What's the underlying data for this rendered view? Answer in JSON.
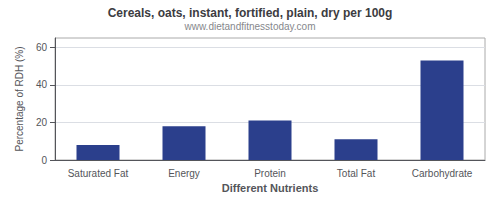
{
  "chart_data": {
    "type": "bar",
    "title": "Cereals, oats, instant, fortified, plain, dry per 100g",
    "subtitle": "www.dietandfitnesstoday.com",
    "categories": [
      "Saturated Fat",
      "Energy",
      "Protein",
      "Total Fat",
      "Carbohydrate"
    ],
    "values": [
      8,
      18,
      21,
      11,
      53
    ],
    "color": "#2b3f8c",
    "xlabel": "Different Nutrients",
    "ylabel": "Percentage of RDH (%)",
    "ylim": [
      0,
      65
    ],
    "yticks": [
      0,
      20,
      40,
      60
    ],
    "grid": true
  }
}
